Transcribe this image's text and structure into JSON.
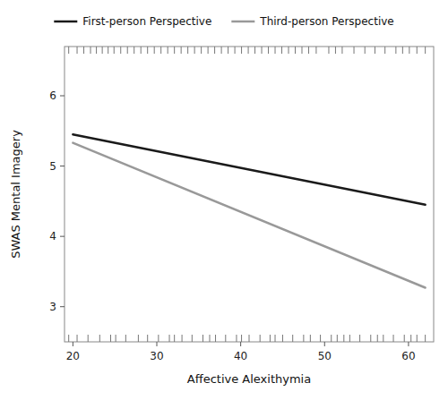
{
  "chart_data": {
    "type": "line",
    "x_label": "Affective Alexithymia",
    "y_label": "SWAS Mental Imagery",
    "x": [
      20,
      62
    ],
    "series": [
      {
        "name": "First-person Perspective",
        "color": "#1a1a1a",
        "values": [
          5.45,
          4.45
        ]
      },
      {
        "name": "Third-person Perspective",
        "color": "#999999",
        "values": [
          5.33,
          3.27
        ]
      }
    ],
    "xlim": [
      19,
      63
    ],
    "ylim": [
      2.5,
      6.7
    ],
    "xticks": [
      20,
      30,
      40,
      50,
      60
    ],
    "yticks": [
      3,
      4,
      5,
      6
    ],
    "rug_top": [
      19.5,
      20.5,
      21.3,
      22.1,
      22.8,
      23.5,
      24.2,
      24.9,
      25.7,
      26.5,
      27.3,
      28.1,
      28.9,
      29.7,
      30.5,
      31.3,
      32.1,
      32.9,
      33.7,
      34.5,
      35.3,
      36.1,
      36.9,
      37.7,
      38.5,
      39.3,
      40.1,
      40.9,
      41.7,
      42.5,
      43.3,
      44.1,
      44.9,
      45.7,
      46.5,
      47.3,
      48.1,
      49.0,
      50.5,
      51.3,
      52.1,
      53.5,
      54.8,
      56.0,
      57.2,
      58.5,
      59.3,
      60.1,
      61.0,
      62.0
    ],
    "rug_bottom": [
      19.5,
      20.5,
      21.8,
      23.2,
      24.5,
      25.1,
      26.3,
      27.8,
      28.9,
      30.2,
      31.5,
      32.1,
      33.0,
      34.2,
      35.5,
      36.3,
      37.0,
      38.2,
      39.5,
      40.1,
      41.0,
      42.3,
      43.5,
      44.1,
      45.0,
      46.2,
      47.5,
      48.3,
      49.5,
      50.8,
      51.5,
      52.3,
      53.0,
      54.2,
      55.5,
      56.3,
      57.0,
      58.2,
      59.5,
      60.3,
      61.0,
      62.0
    ],
    "legend": "top",
    "grid": false
  }
}
